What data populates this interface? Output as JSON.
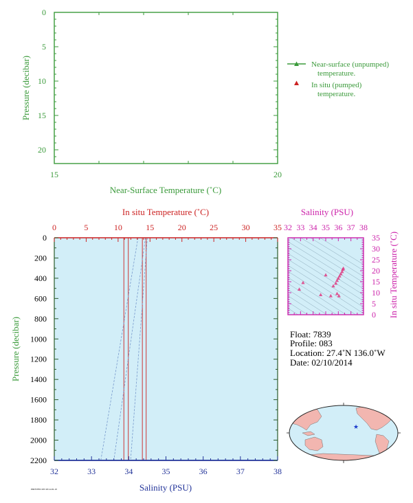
{
  "near_surface": {
    "ylabel": "Pressure (decibar)",
    "xlabel": "Near-Surface Temperature (˚C)",
    "legend": [
      {
        "line1": "Near-surface (unpumped)",
        "line2": "temperature."
      },
      {
        "line1": "In situ (pumped)",
        "line2": "temperature."
      }
    ]
  },
  "main": {
    "top_axis_label": "In situ Temperature (˚C)",
    "ylabel": "Pressure (decibar)",
    "xlabel": "Salinity (PSU)",
    "footnote": "PRINTED ON 2014-02-10"
  },
  "ts": {
    "top_label": "Salinity (PSU)",
    "right_label": "In situ Temperature (˚C)"
  },
  "info": {
    "float": "Float:  7839",
    "profile": "Profile:  083",
    "location": "Location:  27.4˚N  136.0˚W",
    "date": "Date:  02/10/2014"
  },
  "colors": {
    "green": "#3a9a3a",
    "red": "#cc2222",
    "magenta": "#cc22aa",
    "blue": "#223399",
    "plot_bg": "#d2eef8",
    "land": "#f2b6b0"
  },
  "chart_data": [
    {
      "type": "line",
      "title": "",
      "xlabel": "Near-Surface Temperature (˚C)",
      "ylabel": "Pressure (decibar)",
      "xlim": [
        15,
        20
      ],
      "ylim": [
        0,
        22
      ],
      "x_ticks": [
        15,
        20
      ],
      "y_ticks": [
        0,
        5,
        10,
        15,
        20
      ],
      "y_inverted": true,
      "series": [
        {
          "name": "Near-surface (unpumped) temperature.",
          "x": [],
          "y": []
        },
        {
          "name": "In situ (pumped) temperature.",
          "x": [],
          "y": []
        }
      ],
      "legend_position": "right"
    },
    {
      "type": "line",
      "title": "",
      "xlabel": "Salinity (PSU)",
      "ylabel": "Pressure (decibar)",
      "x2label": "In situ Temperature (˚C)",
      "xlim": [
        32,
        38
      ],
      "x2lim": [
        0,
        35
      ],
      "ylim": [
        0,
        2200
      ],
      "y_inverted": true,
      "x_ticks": [
        32,
        33,
        34,
        35,
        36,
        37,
        38
      ],
      "x2_ticks": [
        0,
        5,
        10,
        15,
        20,
        25,
        30,
        35
      ],
      "y_ticks": [
        0,
        200,
        400,
        600,
        800,
        1000,
        1200,
        1400,
        1600,
        1800,
        2000,
        2200
      ],
      "series": [
        {
          "name": "Temperature",
          "axis": "x2",
          "segments": [
            [
              [
                10.9,
                0
              ],
              [
                10.9,
                2200
              ]
            ],
            [
              [
                11.6,
                0
              ],
              [
                11.6,
                2200
              ]
            ],
            [
              [
                13.8,
                0
              ],
              [
                13.8,
                2200
              ]
            ],
            [
              [
                14.4,
                0
              ],
              [
                14.4,
                2200
              ]
            ]
          ]
        },
        {
          "name": "Salinity",
          "axis": "x",
          "segments": [
            [
              [
                34.25,
                0
              ],
              [
                33.25,
                2200
              ]
            ],
            [
              [
                34.45,
                0
              ],
              [
                33.6,
                2200
              ]
            ],
            [
              [
                34.5,
                0
              ],
              [
                34.05,
                2200
              ]
            ]
          ]
        }
      ]
    },
    {
      "type": "scatter",
      "title": "",
      "xlabel": "Salinity (PSU)",
      "ylabel": "In situ Temperature (˚C)",
      "xlim": [
        32,
        38
      ],
      "ylim": [
        0,
        35
      ],
      "x_ticks": [
        32,
        33,
        34,
        35,
        36,
        37,
        38
      ],
      "y_ticks": [
        0,
        5,
        10,
        15,
        20,
        25,
        30,
        35
      ],
      "points": [
        {
          "x": 33.2,
          "y": 14.5
        },
        {
          "x": 32.9,
          "y": 11.5
        },
        {
          "x": 34.6,
          "y": 9.0
        },
        {
          "x": 35.4,
          "y": 8.5
        },
        {
          "x": 35.0,
          "y": 18.0
        },
        {
          "x": 35.6,
          "y": 13.0
        },
        {
          "x": 35.8,
          "y": 14.2
        },
        {
          "x": 35.9,
          "y": 15.5
        },
        {
          "x": 36.0,
          "y": 16.5
        },
        {
          "x": 36.1,
          "y": 17.5
        },
        {
          "x": 36.2,
          "y": 18.5
        },
        {
          "x": 36.3,
          "y": 19.5
        },
        {
          "x": 36.35,
          "y": 20.5
        },
        {
          "x": 36.4,
          "y": 21.0
        },
        {
          "x": 36.05,
          "y": 8.5
        },
        {
          "x": 35.9,
          "y": 9.5
        }
      ]
    }
  ]
}
